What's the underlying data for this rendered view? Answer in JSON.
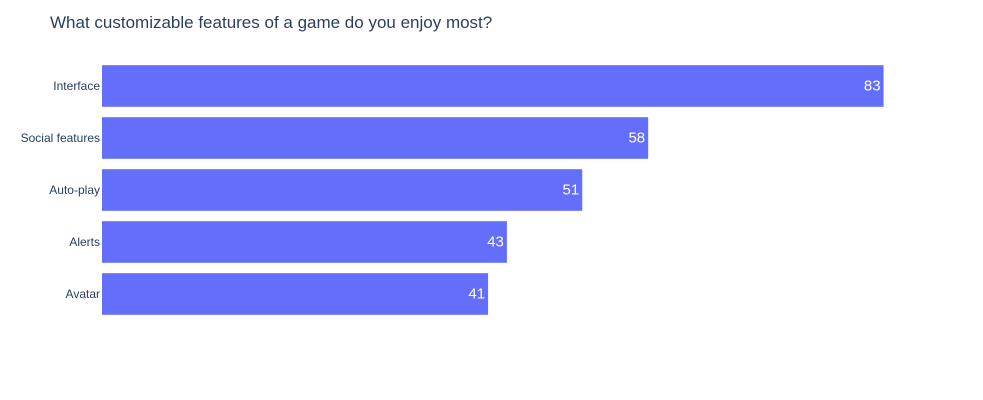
{
  "chart_data": {
    "type": "bar",
    "orientation": "horizontal",
    "title": "What customizable features of a game do you enjoy most?",
    "xlabel": "",
    "ylabel": "",
    "categories": [
      "Interface",
      "Social features",
      "Auto-play",
      "Alerts",
      "Avatar"
    ],
    "values": [
      83,
      58,
      51,
      43,
      41
    ],
    "data_labels": [
      "83",
      "58",
      "51",
      "43",
      "41"
    ],
    "xlim": [
      0,
      87.4
    ],
    "grid": false,
    "legend": "none",
    "colors": {
      "bar": "#636efa",
      "label_inside": "#ffffff",
      "tick_text": "#2a3f5f",
      "title": "#2a3f5f"
    }
  }
}
